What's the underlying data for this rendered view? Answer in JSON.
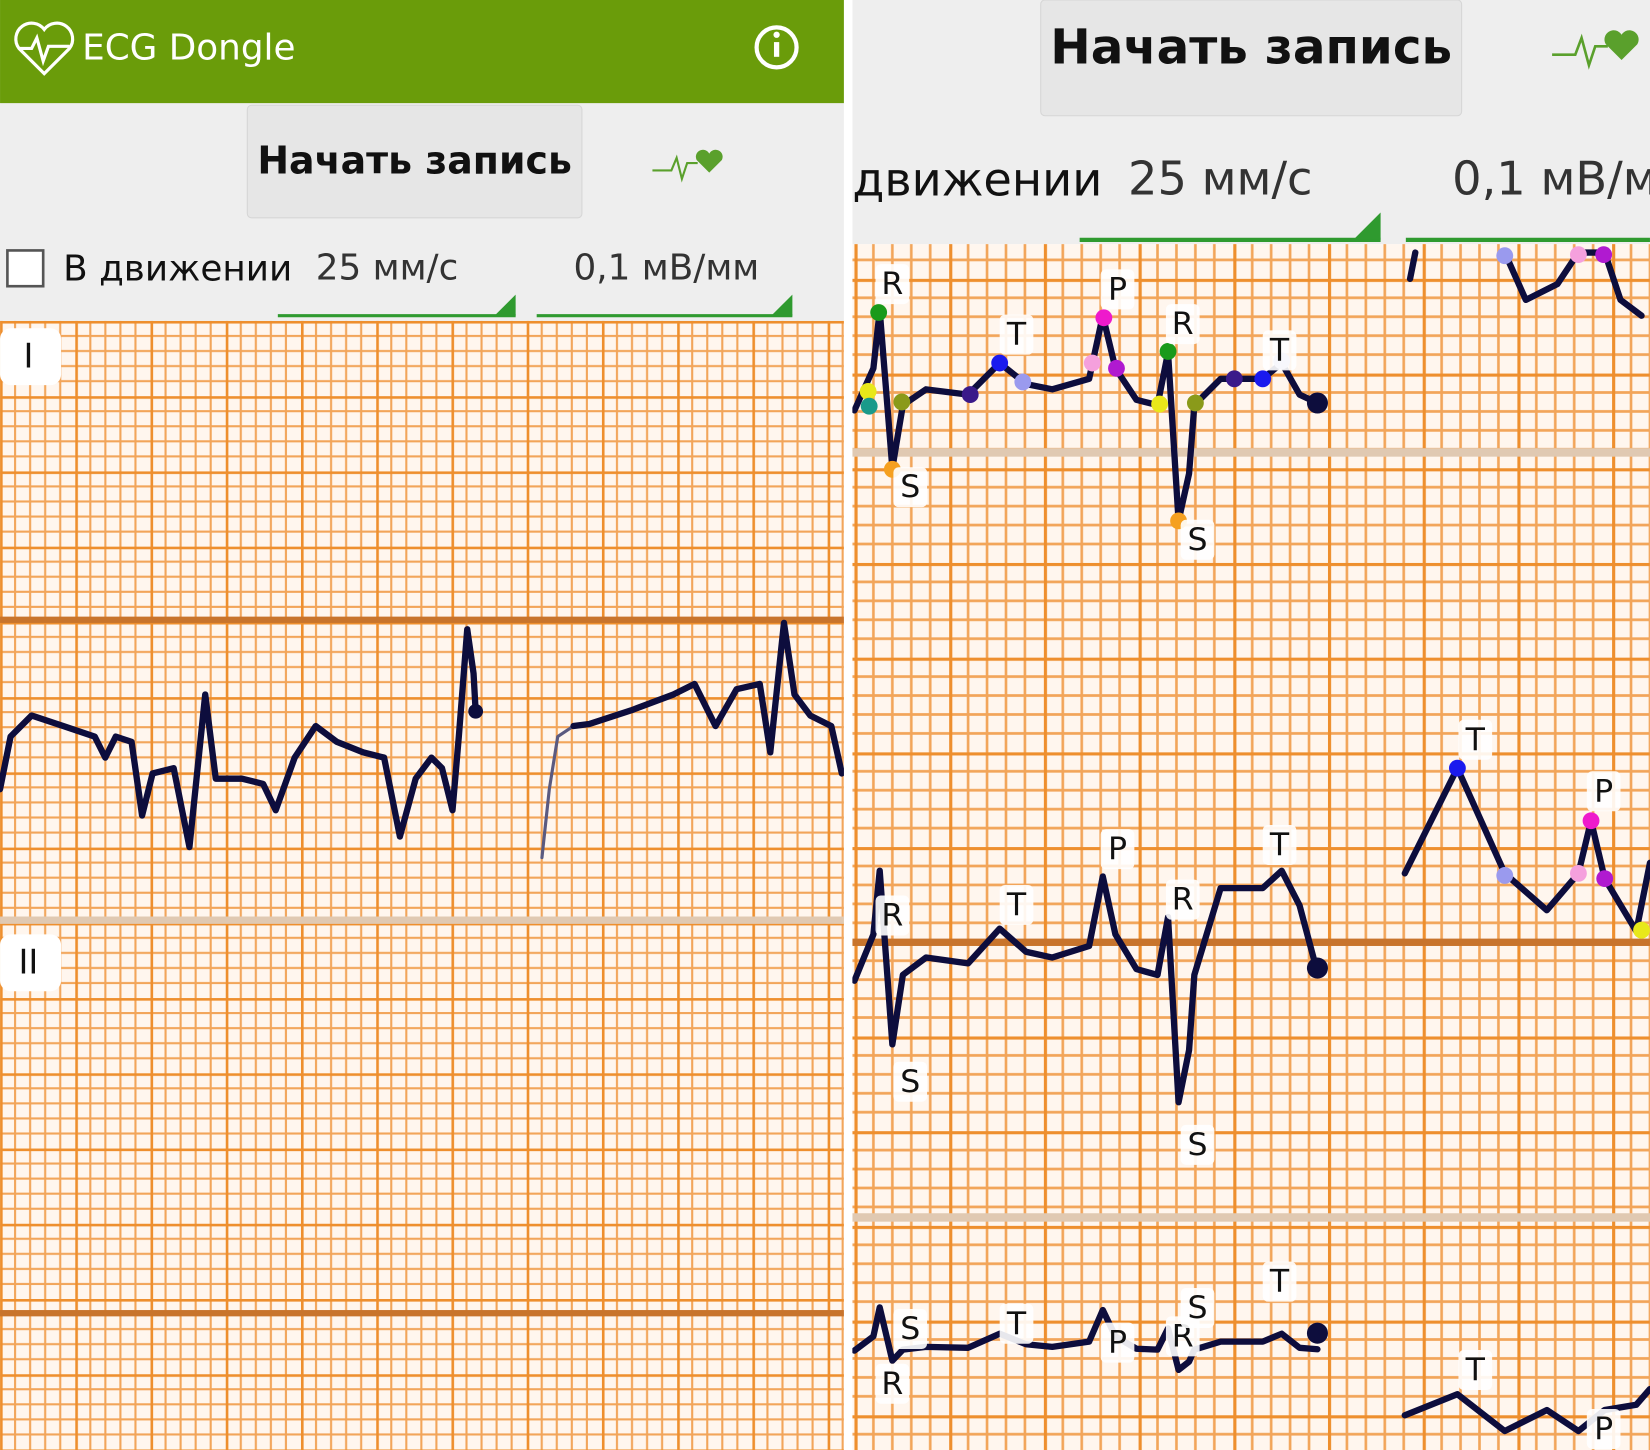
{
  "left_panel": {
    "app_bar": {
      "title": "ECG Dongle"
    },
    "record_button": "Начать запись",
    "moving_checkbox": "В движении",
    "speed": "25 мм/с",
    "gain": "0,1 мВ/мм",
    "leads": [
      "I",
      "II"
    ]
  },
  "right_panel": {
    "record_button": "Начать запись",
    "moving_label": "движении",
    "speed": "25 мм/с",
    "gain": "0,1 мВ/м",
    "annotations": [
      "R",
      "S",
      "T",
      "P",
      "R",
      "S",
      "T",
      "T",
      "P",
      "R",
      "S",
      "T",
      "P",
      "R",
      "S",
      "T",
      "S",
      "R",
      "T",
      "P",
      "R",
      "S",
      "T",
      "T",
      "P"
    ]
  }
}
